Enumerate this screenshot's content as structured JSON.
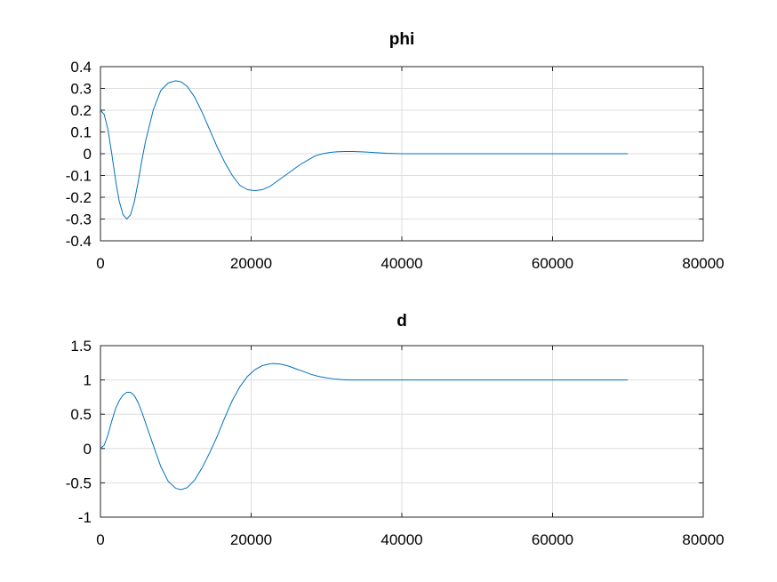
{
  "chart_data": [
    {
      "type": "line",
      "title": "phi",
      "xlabel": "",
      "ylabel": "",
      "xlim": [
        0,
        80000
      ],
      "ylim": [
        -0.4,
        0.4
      ],
      "xticks": [
        0,
        20000,
        40000,
        60000,
        80000
      ],
      "xtick_labels": [
        "0",
        "20000",
        "40000",
        "60000",
        "80000"
      ],
      "yticks": [
        0.4,
        0.3,
        0.2,
        0.1,
        0,
        -0.1,
        -0.2,
        -0.3,
        -0.4
      ],
      "ytick_labels": [
        "0.4",
        "0.3",
        "0.2",
        "0.1",
        "0",
        "-0.1",
        "-0.2",
        "-0.3",
        "-0.4"
      ],
      "grid": true,
      "series_color": "#0072bd",
      "series": [
        {
          "x": [
            0,
            500,
            1000,
            1500,
            2000,
            2500,
            3000,
            3500,
            4000,
            4500,
            5000,
            5500,
            6000,
            7000,
            8000,
            9000,
            10000,
            10700,
            11500,
            12500,
            13500,
            14500,
            15500,
            16500,
            17500,
            18500,
            19500,
            20500,
            21500,
            22500,
            23500,
            24500,
            25500,
            26500,
            27500,
            28500,
            29500,
            30500,
            31500,
            32500,
            33500,
            35000,
            36500,
            38000,
            40000,
            45000,
            50000,
            55000,
            60000,
            65000,
            70000
          ],
          "y": [
            0.2,
            0.18,
            0.11,
            0.0,
            -0.12,
            -0.22,
            -0.28,
            -0.3,
            -0.28,
            -0.22,
            -0.13,
            -0.03,
            0.06,
            0.2,
            0.29,
            0.325,
            0.335,
            0.33,
            0.31,
            0.26,
            0.19,
            0.11,
            0.03,
            -0.04,
            -0.1,
            -0.145,
            -0.165,
            -0.17,
            -0.165,
            -0.15,
            -0.125,
            -0.1,
            -0.075,
            -0.05,
            -0.03,
            -0.01,
            0.0,
            0.006,
            0.009,
            0.01,
            0.01,
            0.008,
            0.005,
            0.002,
            0.0,
            0.0,
            0.0,
            0.0,
            0.0,
            0.0,
            0.0
          ]
        }
      ]
    },
    {
      "type": "line",
      "title": "d",
      "xlabel": "",
      "ylabel": "",
      "xlim": [
        0,
        80000
      ],
      "ylim": [
        -1,
        1.5
      ],
      "xticks": [
        0,
        20000,
        40000,
        60000,
        80000
      ],
      "xtick_labels": [
        "0",
        "20000",
        "40000",
        "60000",
        "80000"
      ],
      "yticks": [
        1.5,
        1,
        0.5,
        0,
        -0.5,
        -1
      ],
      "ytick_labels": [
        "1.5",
        "1",
        "0.5",
        "0",
        "-0.5",
        "-1"
      ],
      "grid": true,
      "series_color": "#0072bd",
      "series": [
        {
          "x": [
            0,
            500,
            1000,
            1500,
            2000,
            2500,
            3000,
            3500,
            4000,
            4500,
            5000,
            5500,
            6000,
            7000,
            8000,
            9000,
            10000,
            10700,
            11500,
            12500,
            13500,
            14500,
            15500,
            16500,
            17500,
            18500,
            19500,
            20500,
            21500,
            22500,
            23000,
            24000,
            25000,
            26000,
            27000,
            28000,
            29000,
            30000,
            31000,
            32000,
            33000,
            34000,
            36000,
            38000,
            40000,
            45000,
            50000,
            55000,
            60000,
            65000,
            70000
          ],
          "y": [
            0.0,
            0.05,
            0.2,
            0.4,
            0.58,
            0.7,
            0.78,
            0.82,
            0.82,
            0.77,
            0.67,
            0.53,
            0.37,
            0.05,
            -0.26,
            -0.48,
            -0.58,
            -0.6,
            -0.57,
            -0.46,
            -0.28,
            -0.06,
            0.18,
            0.45,
            0.7,
            0.9,
            1.05,
            1.15,
            1.21,
            1.235,
            1.24,
            1.23,
            1.2,
            1.16,
            1.12,
            1.08,
            1.05,
            1.03,
            1.015,
            1.005,
            1.0,
            1.0,
            1.0,
            1.0,
            1.0,
            1.0,
            1.0,
            1.0,
            1.0,
            1.0,
            1.0
          ]
        }
      ]
    }
  ]
}
